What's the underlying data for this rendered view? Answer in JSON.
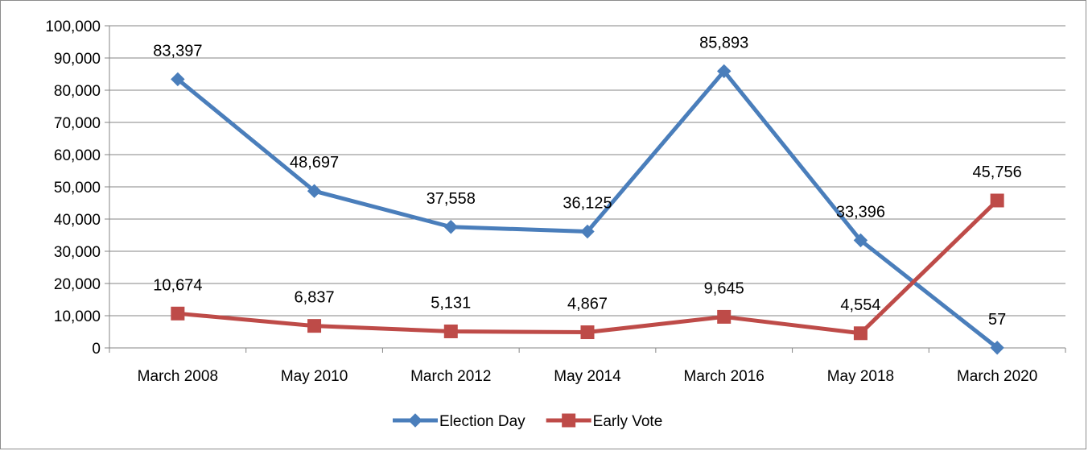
{
  "chart_data": {
    "type": "line",
    "title": "",
    "xlabel": "",
    "ylabel": "",
    "categories": [
      "March 2008",
      "May 2010",
      "March 2012",
      "May 2014",
      "March 2016",
      "May 2018",
      "March 2020"
    ],
    "ylim": [
      0,
      100000
    ],
    "yticks": [
      0,
      10000,
      20000,
      30000,
      40000,
      50000,
      60000,
      70000,
      80000,
      90000,
      100000
    ],
    "ytick_labels": [
      "0",
      "10,000",
      "20,000",
      "30,000",
      "40,000",
      "50,000",
      "60,000",
      "70,000",
      "80,000",
      "90,000",
      "100,000"
    ],
    "grid": true,
    "legend_position": "bottom",
    "series": [
      {
        "name": "Election Day",
        "color": "#4a7ebb",
        "marker": "diamond",
        "values": [
          83397,
          48697,
          37558,
          36125,
          85893,
          33396,
          57
        ],
        "labels": [
          "83,397",
          "48,697",
          "37,558",
          "36,125",
          "85,893",
          "33,396",
          "57"
        ]
      },
      {
        "name": "Early Vote",
        "color": "#be4b48",
        "marker": "square",
        "values": [
          10674,
          6837,
          5131,
          4867,
          9645,
          4554,
          45756
        ],
        "labels": [
          "10,674",
          "6,837",
          "5,131",
          "4,867",
          "9,645",
          "4,554",
          "45,756"
        ]
      }
    ]
  }
}
